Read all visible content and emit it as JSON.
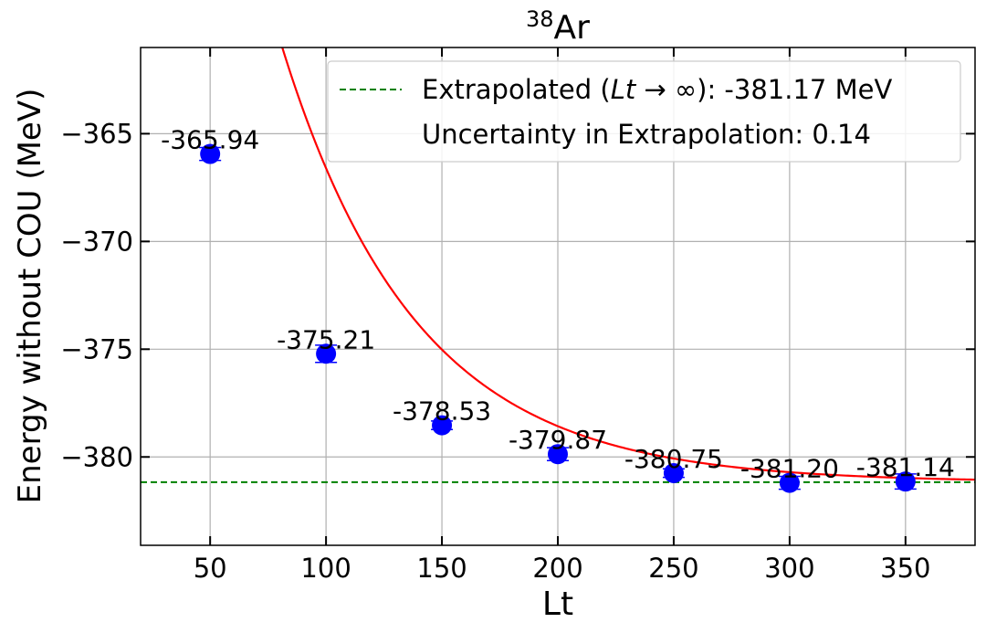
{
  "chart_data": {
    "type": "scatter",
    "title_base": "Ar",
    "title_superscript": "38",
    "xlabel": "Lt",
    "ylabel": "Energy without COU (MeV)",
    "xlim": [
      20,
      380
    ],
    "ylim": [
      -384.1,
      -361
    ],
    "xticks": [
      50,
      100,
      150,
      200,
      250,
      300,
      350
    ],
    "yticks": [
      -365,
      -370,
      -375,
      -380
    ],
    "grid": true,
    "legend_position": "top-right",
    "legend": {
      "extrapolated_prefix": "Extrapolated (",
      "extrapolated_symbol": "Lt",
      "extrapolated_arrow": " → ∞",
      "extrapolated_suffix": "): -381.17 MeV",
      "uncertainty": "Uncertainty in Extrapolation: 0.14"
    },
    "series": [
      {
        "type": "scatter",
        "color": "#0000ff",
        "x": [
          50,
          100,
          150,
          200,
          250,
          300,
          350
        ],
        "y": [
          -365.94,
          -375.21,
          -378.53,
          -379.87,
          -380.75,
          -381.2,
          -381.14
        ],
        "yerr": [
          0.3,
          0.4,
          0.2,
          0.3,
          0.2,
          0.3,
          0.35
        ],
        "labels": [
          "-365.94",
          "-375.21",
          "-378.53",
          "-379.87",
          "-380.75",
          "-381.20",
          "-381.14"
        ]
      },
      {
        "type": "line",
        "color": "#ff0000",
        "model": "exponential",
        "asymptote": -381.17,
        "amplitude": 34.5,
        "decay_length": 58
      },
      {
        "type": "hline",
        "color": "#008000",
        "style": "dashed",
        "y": -381.17
      }
    ]
  }
}
